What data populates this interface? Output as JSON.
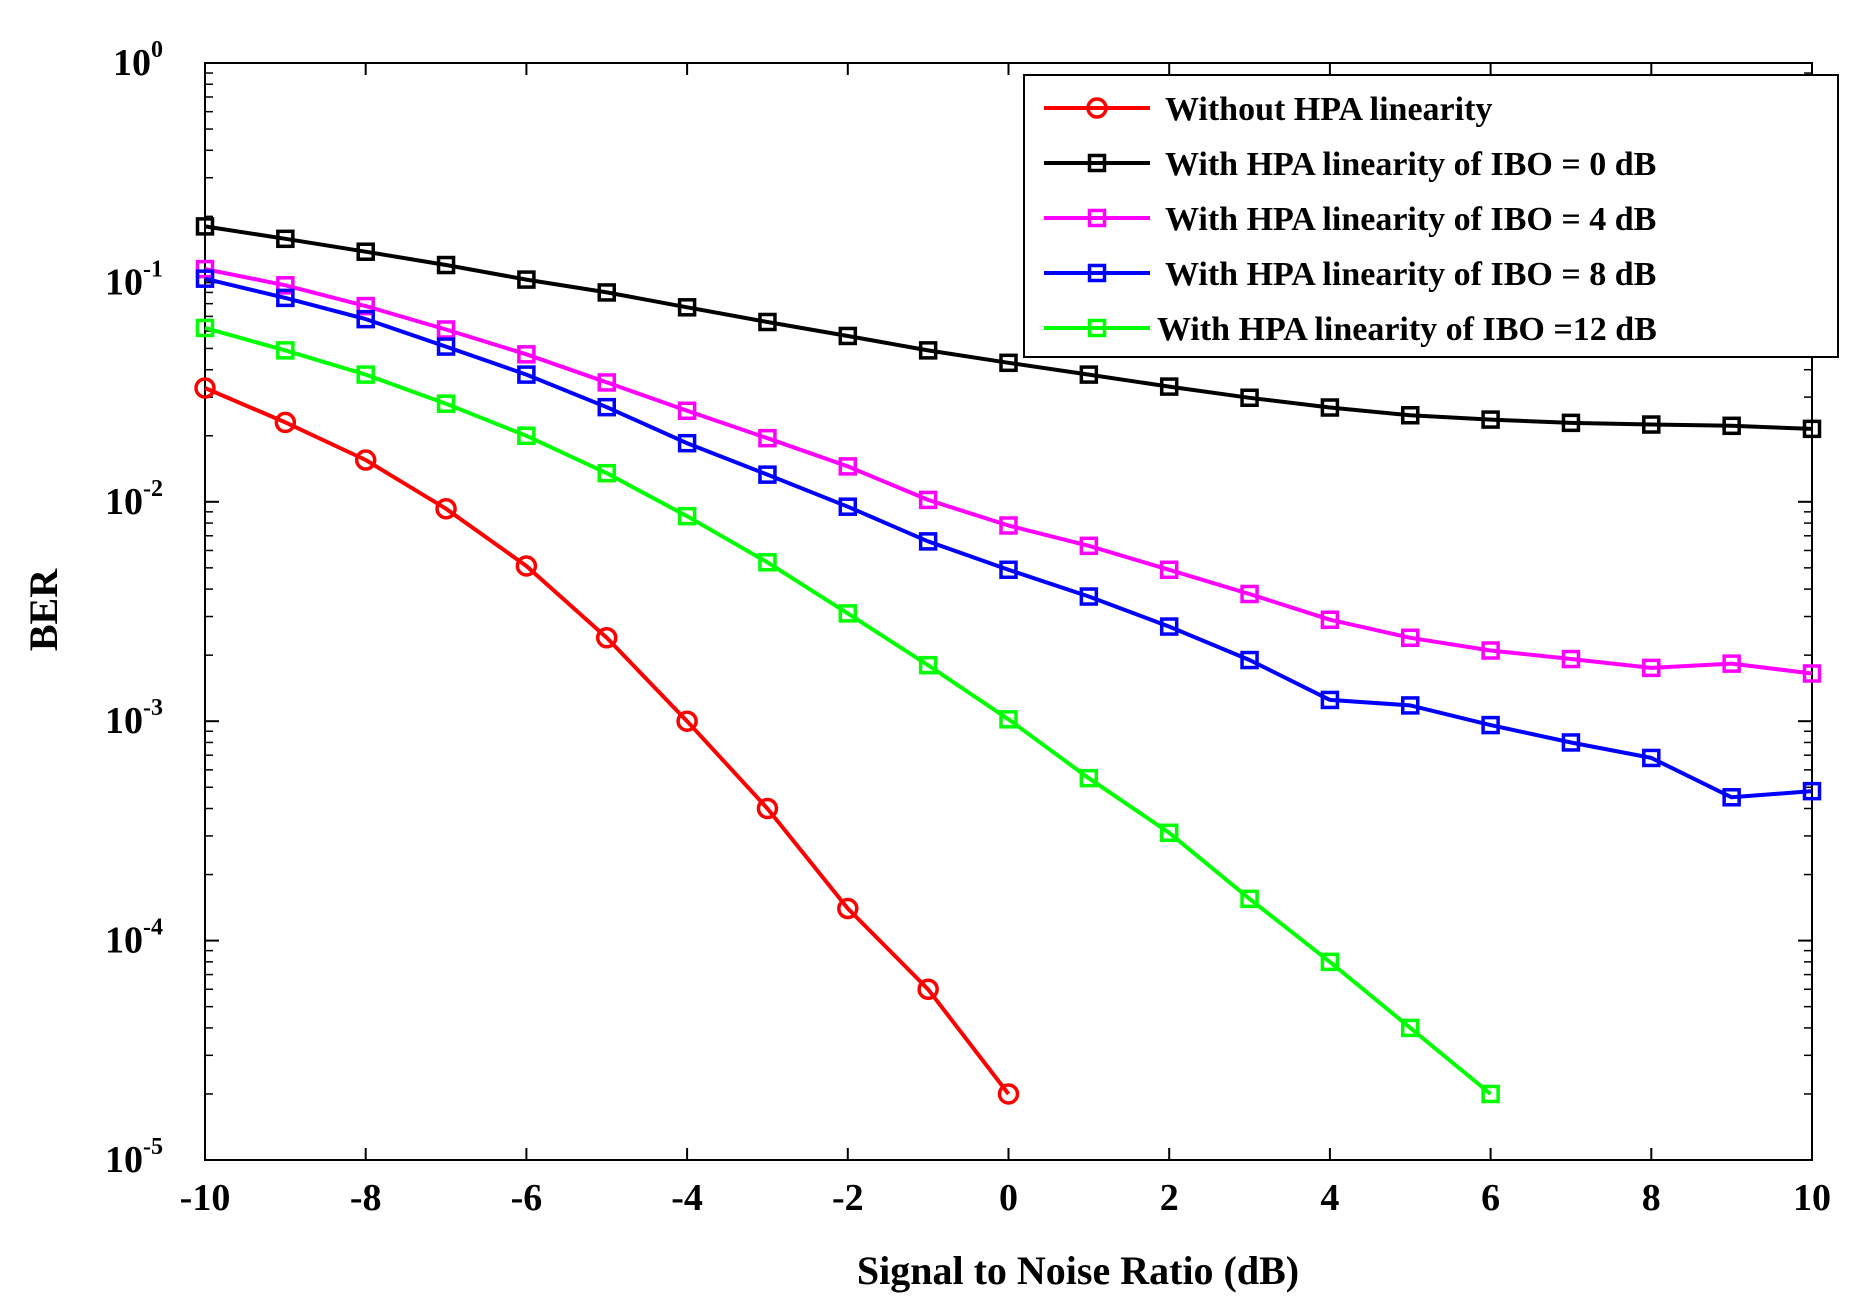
{
  "chart_data": {
    "type": "line",
    "title": "",
    "xlabel": "Signal to Noise Ratio (dB)",
    "ylabel": "BER",
    "xlim": [
      -10,
      10
    ],
    "ylim": [
      1e-05,
      1
    ],
    "yscale": "log",
    "x_ticks": [
      -10,
      -8,
      -6,
      -4,
      -2,
      0,
      2,
      4,
      6,
      8,
      10
    ],
    "x_tick_labels": [
      "-10",
      "-8",
      "-6",
      "-4",
      "-2",
      "0",
      "2",
      "4",
      "6",
      "8",
      "10"
    ],
    "y_ticks": [
      {
        "value": 1,
        "base": "10",
        "exp": "0"
      },
      {
        "value": 0.1,
        "base": "10",
        "exp": "-1"
      },
      {
        "value": 0.01,
        "base": "10",
        "exp": "-2"
      },
      {
        "value": 0.001,
        "base": "10",
        "exp": "-3"
      },
      {
        "value": 0.0001,
        "base": "10",
        "exp": "-4"
      },
      {
        "value": 1e-05,
        "base": "10",
        "exp": "-5"
      }
    ],
    "grid": false,
    "legend_position": "top-right",
    "series": [
      {
        "name": "Without HPA linearity",
        "color": "#ff0000",
        "marker": "circle",
        "x": [
          -10,
          -9,
          -8,
          -7,
          -6,
          -5,
          -4,
          -3,
          -2,
          -1,
          0
        ],
        "values": [
          0.033,
          0.023,
          0.0155,
          0.0093,
          0.0051,
          0.0024,
          0.001,
          0.0004,
          0.00014,
          6e-05,
          2e-05
        ]
      },
      {
        "name": "With HPA linearity of IBO = 0 dB",
        "color": "#000000",
        "marker": "square",
        "x": [
          -10,
          -9,
          -8,
          -7,
          -6,
          -5,
          -4,
          -3,
          -2,
          -1,
          0,
          1,
          2,
          3,
          4,
          5,
          6,
          7,
          8,
          9,
          10
        ],
        "values": [
          0.18,
          0.158,
          0.138,
          0.12,
          0.103,
          0.09,
          0.077,
          0.066,
          0.057,
          0.049,
          0.043,
          0.038,
          0.0335,
          0.0298,
          0.0269,
          0.0248,
          0.0237,
          0.0229,
          0.0225,
          0.0222,
          0.0215
        ]
      },
      {
        "name": "With HPA linearity of IBO = 4 dB",
        "color": "#ff00ff",
        "marker": "square",
        "x": [
          -10,
          -9,
          -8,
          -7,
          -6,
          -5,
          -4,
          -3,
          -2,
          -1,
          0,
          1,
          2,
          3,
          4,
          5,
          6,
          7,
          8,
          9,
          10
        ],
        "values": [
          0.115,
          0.097,
          0.078,
          0.061,
          0.047,
          0.035,
          0.026,
          0.0195,
          0.0145,
          0.0102,
          0.0078,
          0.0063,
          0.0049,
          0.0038,
          0.0029,
          0.0024,
          0.0021,
          0.00192,
          0.00175,
          0.00183,
          0.00165
        ]
      },
      {
        "name": "With HPA linearity of IBO = 8 dB",
        "color": "#0000ff",
        "marker": "square",
        "x": [
          -10,
          -9,
          -8,
          -7,
          -6,
          -5,
          -4,
          -3,
          -2,
          -1,
          0,
          1,
          2,
          3,
          4,
          5,
          6,
          7,
          8,
          9,
          10
        ],
        "values": [
          0.104,
          0.085,
          0.068,
          0.051,
          0.038,
          0.027,
          0.0185,
          0.0133,
          0.0095,
          0.0066,
          0.0049,
          0.0037,
          0.0027,
          0.0019,
          0.00125,
          0.00118,
          0.00096,
          0.0008,
          0.00068,
          0.00045,
          0.00048
        ]
      },
      {
        "name": "With HPA linearity of IBO =12 dB",
        "color": "#00ff00",
        "marker": "square",
        "x": [
          -10,
          -9,
          -8,
          -7,
          -6,
          -5,
          -4,
          -3,
          -2,
          -1,
          0,
          1,
          2,
          3,
          4,
          5,
          6
        ],
        "values": [
          0.062,
          0.049,
          0.038,
          0.028,
          0.02,
          0.0135,
          0.0086,
          0.0053,
          0.0031,
          0.0018,
          0.00102,
          0.00055,
          0.00031,
          0.000155,
          8e-05,
          4e-05,
          2e-05
        ]
      }
    ]
  }
}
